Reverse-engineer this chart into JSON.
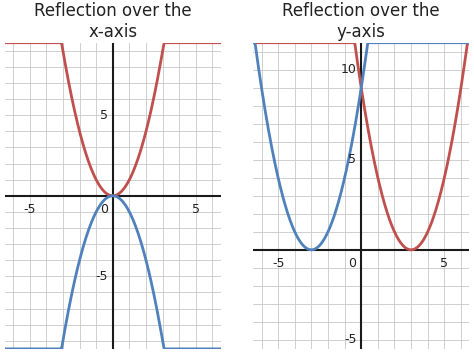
{
  "left_title_line1": "Reflection over the",
  "left_title_line2": "x-axis",
  "right_title_line1": "Reflection over the",
  "right_title_line2": "y-axis",
  "left_xlim": [
    -6.5,
    6.5
  ],
  "left_ylim": [
    -9.5,
    9.5
  ],
  "left_xtick_labels": [
    -5,
    5
  ],
  "left_ytick_labels": [
    -5,
    5
  ],
  "left_origin_label": "0",
  "right_xlim": [
    -6.5,
    6.5
  ],
  "right_ylim": [
    -5.5,
    11.5
  ],
  "right_xtick_labels": [
    -5,
    5
  ],
  "right_ytick_labels": [
    -5,
    5,
    10
  ],
  "right_origin_label": "0",
  "red_color": "#c0504d",
  "blue_color": "#4f81bd",
  "grid_color": "#c8c8c8",
  "axis_color": "#1a1a1a",
  "text_color": "#222222",
  "bg_color": "#ffffff",
  "title_fontsize": 12,
  "tick_fontsize": 9,
  "linewidth": 2.0,
  "axis_linewidth": 1.5
}
